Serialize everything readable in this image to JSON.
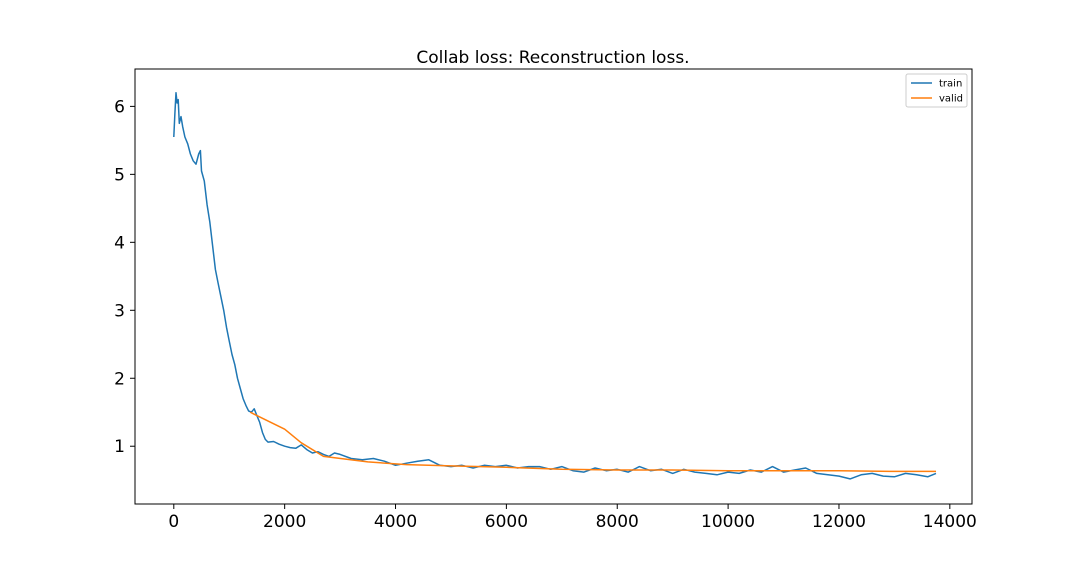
{
  "chart_data": {
    "type": "line",
    "title": "Collab loss: Reconstruction loss.",
    "xlabel": "",
    "ylabel": "",
    "xlim": [
      -700,
      14400
    ],
    "ylim": [
      0.15,
      6.55
    ],
    "xticks": [
      0,
      2000,
      4000,
      6000,
      8000,
      10000,
      12000,
      14000
    ],
    "yticks": [
      1,
      2,
      3,
      4,
      5,
      6
    ],
    "grid": false,
    "legend_position": "top-right",
    "series": [
      {
        "name": "train",
        "color": "#1f77b4",
        "x": [
          0,
          20,
          40,
          60,
          80,
          100,
          130,
          160,
          200,
          250,
          300,
          350,
          400,
          450,
          480,
          500,
          550,
          600,
          650,
          700,
          750,
          800,
          850,
          900,
          950,
          1000,
          1050,
          1100,
          1150,
          1200,
          1250,
          1300,
          1350,
          1400,
          1450,
          1500,
          1550,
          1600,
          1650,
          1700,
          1800,
          1900,
          2000,
          2100,
          2200,
          2300,
          2400,
          2500,
          2600,
          2700,
          2800,
          2900,
          3000,
          3200,
          3400,
          3600,
          3800,
          4000,
          4200,
          4400,
          4600,
          4800,
          5000,
          5200,
          5400,
          5600,
          5800,
          6000,
          6200,
          6400,
          6600,
          6800,
          7000,
          7200,
          7400,
          7600,
          7800,
          8000,
          8200,
          8400,
          8600,
          8800,
          9000,
          9200,
          9400,
          9600,
          9800,
          10000,
          10200,
          10400,
          10600,
          10800,
          11000,
          11200,
          11400,
          11600,
          11800,
          12000,
          12200,
          12400,
          12600,
          12800,
          13000,
          13200,
          13400,
          13600,
          13750
        ],
        "y": [
          5.55,
          5.9,
          6.2,
          6.05,
          6.1,
          5.75,
          5.85,
          5.7,
          5.55,
          5.45,
          5.3,
          5.2,
          5.15,
          5.3,
          5.35,
          5.05,
          4.9,
          4.55,
          4.3,
          3.95,
          3.6,
          3.4,
          3.2,
          3.0,
          2.75,
          2.55,
          2.35,
          2.2,
          2.0,
          1.85,
          1.7,
          1.6,
          1.52,
          1.5,
          1.55,
          1.45,
          1.35,
          1.2,
          1.1,
          1.06,
          1.07,
          1.03,
          1.0,
          0.98,
          0.97,
          1.02,
          0.95,
          0.9,
          0.92,
          0.88,
          0.85,
          0.9,
          0.88,
          0.82,
          0.8,
          0.82,
          0.78,
          0.72,
          0.75,
          0.78,
          0.8,
          0.72,
          0.7,
          0.72,
          0.68,
          0.72,
          0.7,
          0.72,
          0.68,
          0.7,
          0.7,
          0.66,
          0.7,
          0.64,
          0.62,
          0.68,
          0.64,
          0.66,
          0.62,
          0.7,
          0.64,
          0.66,
          0.6,
          0.66,
          0.62,
          0.6,
          0.58,
          0.62,
          0.6,
          0.65,
          0.62,
          0.7,
          0.62,
          0.65,
          0.68,
          0.6,
          0.58,
          0.56,
          0.52,
          0.58,
          0.6,
          0.56,
          0.55,
          0.6,
          0.58,
          0.55,
          0.6
        ]
      },
      {
        "name": "valid",
        "color": "#ff7f0e",
        "x": [
          1380,
          1500,
          2000,
          2300,
          2700,
          3500,
          4200,
          5000,
          6000,
          7000,
          8000,
          9000,
          10000,
          11000,
          12000,
          13000,
          13750
        ],
        "y": [
          1.5,
          1.45,
          1.25,
          1.05,
          0.85,
          0.77,
          0.73,
          0.71,
          0.69,
          0.66,
          0.65,
          0.65,
          0.64,
          0.64,
          0.64,
          0.63,
          0.63
        ]
      }
    ]
  }
}
